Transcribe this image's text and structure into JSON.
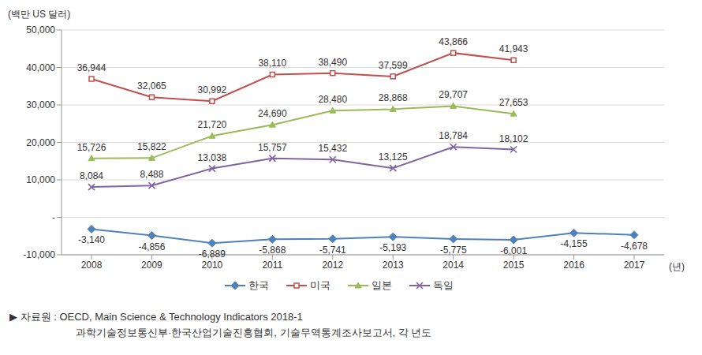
{
  "chart_data": {
    "type": "line",
    "y_label": "(백만 US 달러)",
    "x_label": "(년)",
    "categories": [
      "2008",
      "2009",
      "2010",
      "2011",
      "2012",
      "2013",
      "2014",
      "2015",
      "2016",
      "2017"
    ],
    "series": [
      {
        "name": "한국",
        "color": "#4f81bd",
        "marker": "diamond",
        "values": [
          -3140,
          -4856,
          -6889,
          -5868,
          -5741,
          -5193,
          -5775,
          -6001,
          -4155,
          -4678
        ],
        "value_labels": [
          "-3,140",
          "-4,856",
          "-6,889",
          "-5,868",
          "-5,741",
          "-5,193",
          "-5,775",
          "-6,001",
          "-4,155",
          "-4,678"
        ]
      },
      {
        "name": "미국",
        "color": "#c0504d",
        "marker": "square",
        "values": [
          36944,
          32065,
          30992,
          38110,
          38490,
          37599,
          43866,
          41943,
          null,
          null
        ],
        "value_labels": [
          "36,944",
          "32,065",
          "30,992",
          "38,110",
          "38,490",
          "37,599",
          "43,866",
          "41,943",
          null,
          null
        ]
      },
      {
        "name": "일본",
        "color": "#9bbb59",
        "marker": "triangle",
        "values": [
          15726,
          15822,
          21720,
          24690,
          28480,
          28868,
          29707,
          27653,
          null,
          null
        ],
        "value_labels": [
          "15,726",
          "15,822",
          "21,720",
          "24,690",
          "28,480",
          "28,868",
          "29,707",
          "27,653",
          null,
          null
        ]
      },
      {
        "name": "독일",
        "color": "#8064a2",
        "marker": "x",
        "values": [
          8084,
          8488,
          13038,
          15757,
          15432,
          13125,
          18784,
          18102,
          null,
          null
        ],
        "value_labels": [
          "8,084",
          "8,488",
          "13,038",
          "15,757",
          "15,432",
          "13,125",
          "18,784",
          "18,102",
          null,
          null
        ]
      }
    ],
    "ylim": [
      -10000,
      50000
    ],
    "yticks": [
      {
        "value": -10000,
        "label": "-10,000"
      },
      {
        "value": 0,
        "label": "-"
      },
      {
        "value": 10000,
        "label": "10,000"
      },
      {
        "value": 20000,
        "label": "20,000"
      },
      {
        "value": 30000,
        "label": "30,000"
      },
      {
        "value": 40000,
        "label": "40,000"
      },
      {
        "value": 50000,
        "label": "50,000"
      }
    ],
    "grid": true,
    "legend": "bottom",
    "data_labels": true,
    "annotations": [
      "▶ 자료원 : OECD, Main Science & Technology Indicators 2018-1",
      "과학기술정보통신부·한국산업기술진흥협회, 기술무역통계조사보고서, 각 년도"
    ]
  }
}
